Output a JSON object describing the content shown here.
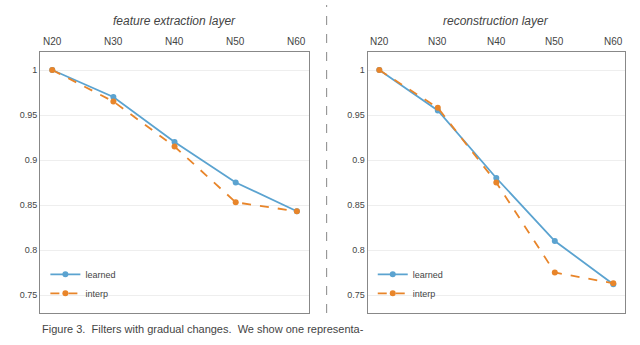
{
  "chart_data": [
    {
      "type": "line",
      "title": "feature extraction layer",
      "x": [
        20,
        30,
        40,
        50,
        60
      ],
      "series": [
        {
          "name": "learned",
          "color": "#5ba3d0",
          "marker": "circle",
          "line_style": "solid",
          "values": [
            1.0,
            0.97,
            0.92,
            0.875,
            0.843
          ]
        },
        {
          "name": "interp",
          "color": "#e8852a",
          "marker": "circle",
          "line_style": "dashed",
          "values": [
            1.0,
            0.965,
            0.915,
            0.853,
            0.843
          ]
        }
      ],
      "xlim": [
        18,
        62
      ],
      "ylim": [
        0.73,
        1.02
      ],
      "yticks": [
        0.75,
        0.8,
        0.85,
        0.9,
        0.95,
        1.0
      ],
      "grid": true,
      "legend": "lower left",
      "tick_labels": "y",
      "annotations": [
        {
          "text": "N20",
          "x": 20
        },
        {
          "text": "N30",
          "x": 30
        },
        {
          "text": "N40",
          "x": 40
        },
        {
          "text": "N50",
          "x": 50
        },
        {
          "text": "N60",
          "x": 60
        },
        {
          "text": "Figure 3.  Filters with gradual changes.  We show one representa-"
        }
      ]
    },
    {
      "type": "line",
      "title": "reconstruction layer",
      "x": [
        20,
        30,
        40,
        50,
        60
      ],
      "series": [
        {
          "name": "learned",
          "color": "#5ba3d0",
          "marker": "circle",
          "line_style": "solid",
          "values": [
            1.0,
            0.955,
            0.88,
            0.81,
            0.762
          ]
        },
        {
          "name": "interp",
          "color": "#e8852a",
          "marker": "circle",
          "line_style": "dashed",
          "values": [
            1.0,
            0.958,
            0.875,
            0.775,
            0.763
          ]
        }
      ],
      "xlim": [
        18,
        62
      ],
      "ylim": [
        0.73,
        1.02
      ],
      "yticks": [
        0.75,
        0.8,
        0.85,
        0.9,
        0.95,
        1.0
      ],
      "grid": true,
      "legend": "lower left",
      "tick_labels": "y",
      "annotations": [
        {
          "text": "N20",
          "x": 20
        },
        {
          "text": "N30",
          "x": 30
        },
        {
          "text": "N40",
          "x": 40
        },
        {
          "text": "N50",
          "x": 50
        },
        {
          "text": "N60",
          "x": 60
        }
      ]
    }
  ]
}
